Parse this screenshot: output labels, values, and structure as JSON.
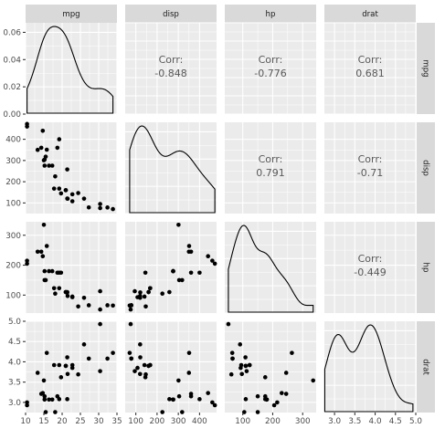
{
  "chart_data": {
    "type": "scatter",
    "layout": "pairs-matrix",
    "variables": [
      "mpg",
      "disp",
      "hp",
      "drat"
    ],
    "ranges": {
      "mpg": [
        10,
        35
      ],
      "disp": [
        50,
        480
      ],
      "hp": [
        40,
        345
      ],
      "drat": [
        2.75,
        5.0
      ]
    },
    "ticks": {
      "mpg": [
        10,
        15,
        20,
        25,
        30,
        35
      ],
      "disp": [
        100,
        200,
        300,
        400
      ],
      "hp": [
        100,
        200,
        300
      ],
      "drat": [
        3.0,
        3.5,
        4.0,
        4.5,
        5.0
      ]
    },
    "tick_labels": {
      "mpg": [
        "10",
        "15",
        "20",
        "25",
        "30",
        "35"
      ],
      "disp": [
        "100",
        "200",
        "300",
        "400"
      ],
      "hp": [
        "100",
        "200",
        "300"
      ],
      "drat": [
        "3.0",
        "3.5",
        "4.0",
        "4.5",
        "5.0"
      ]
    },
    "density_axis": {
      "ylim": [
        0,
        0.067
      ],
      "ticks": [
        "0.00",
        "0.02",
        "0.04",
        "0.06"
      ],
      "tick_values": [
        0,
        0.02,
        0.04,
        0.06
      ]
    },
    "correlation_label": "Corr:",
    "correlations": [
      {
        "row": "mpg",
        "col": "disp",
        "label": "-0.848"
      },
      {
        "row": "mpg",
        "col": "hp",
        "label": "-0.776"
      },
      {
        "row": "mpg",
        "col": "drat",
        "label": "0.681"
      },
      {
        "row": "disp",
        "col": "hp",
        "label": "0.791"
      },
      {
        "row": "disp",
        "col": "drat",
        "label": "-0.71"
      },
      {
        "row": "hp",
        "col": "drat",
        "label": "-0.449"
      }
    ],
    "points": {
      "mpg": [
        21.0,
        21.0,
        22.8,
        21.4,
        18.7,
        18.1,
        14.3,
        24.4,
        22.8,
        19.2,
        17.8,
        16.4,
        17.3,
        15.2,
        10.4,
        10.4,
        14.7,
        32.4,
        30.4,
        33.9,
        21.5,
        15.5,
        15.2,
        13.3,
        19.2,
        27.3,
        26.0,
        30.4,
        15.8,
        19.7,
        15.0,
        21.4
      ],
      "disp": [
        160,
        160,
        108,
        258,
        360,
        225,
        360,
        146.7,
        140.8,
        167.6,
        167.6,
        275.8,
        275.8,
        275.8,
        472,
        460,
        440,
        78.7,
        75.7,
        71.1,
        120.1,
        318,
        304,
        350,
        400,
        79,
        120.3,
        95.1,
        351,
        145,
        301,
        121
      ],
      "hp": [
        110,
        110,
        93,
        110,
        175,
        105,
        245,
        62,
        95,
        123,
        123,
        180,
        180,
        180,
        205,
        215,
        230,
        66,
        52,
        65,
        97,
        150,
        150,
        245,
        175,
        66,
        91,
        113,
        264,
        175,
        335,
        109
      ],
      "drat": [
        3.9,
        3.9,
        3.85,
        3.08,
        3.15,
        2.76,
        3.21,
        3.69,
        3.92,
        3.92,
        3.92,
        3.07,
        3.07,
        3.07,
        2.93,
        3.0,
        3.23,
        4.08,
        4.93,
        4.22,
        3.7,
        2.76,
        3.15,
        3.73,
        3.08,
        4.08,
        4.43,
        3.77,
        4.22,
        3.62,
        3.54,
        4.11
      ]
    }
  }
}
